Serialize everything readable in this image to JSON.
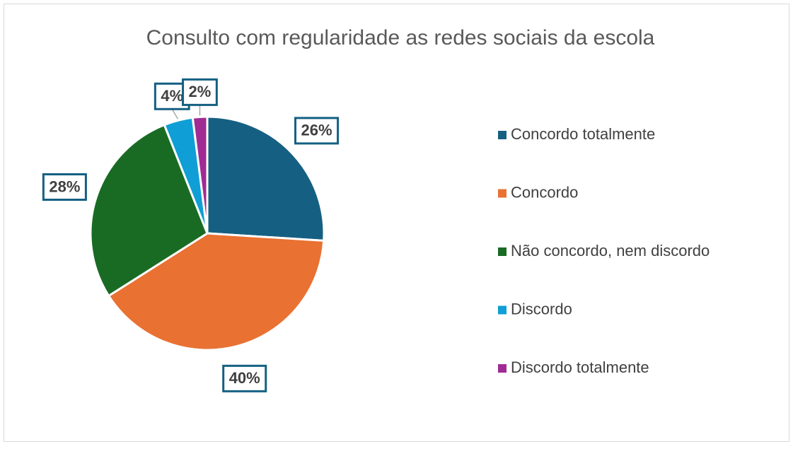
{
  "chart_data": {
    "type": "pie",
    "title": "Consulto com regularidade as redes sociais da escola",
    "categories": [
      "Concordo totalmente",
      "Concordo",
      "Não concordo, nem discordo",
      "Discordo",
      "Discordo totalmente"
    ],
    "values": [
      26,
      40,
      28,
      4,
      2
    ],
    "value_labels": [
      "26%",
      "40%",
      "28%",
      "4%",
      "2%"
    ],
    "colors": [
      "#156082",
      "#e97132",
      "#196b24",
      "#0f9ed5",
      "#a02b93"
    ],
    "legend": "right"
  }
}
